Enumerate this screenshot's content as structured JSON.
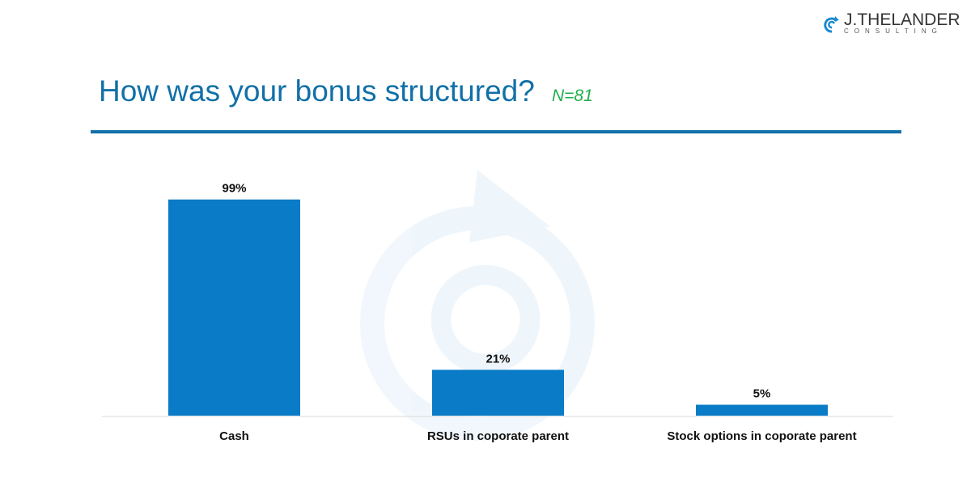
{
  "header": {
    "title": "How was your bonus structured?",
    "n_label": "N=81"
  },
  "logo": {
    "name": "J.THELANDER",
    "sub": "CONSULTING"
  },
  "colors": {
    "bar": "#0a7bc6",
    "title": "#1170a8",
    "n": "#1fae4b"
  },
  "chart_data": {
    "type": "bar",
    "title": "How was your bonus structured?",
    "categories": [
      "Cash",
      "RSUs in coporate parent",
      "Stock options in coporate parent"
    ],
    "values": [
      99,
      21,
      5
    ],
    "data_labels": [
      "99%",
      "21%",
      "5%"
    ],
    "xlabel": "",
    "ylabel": "",
    "ylim": [
      0,
      100
    ],
    "grid": false,
    "legend": "none"
  }
}
